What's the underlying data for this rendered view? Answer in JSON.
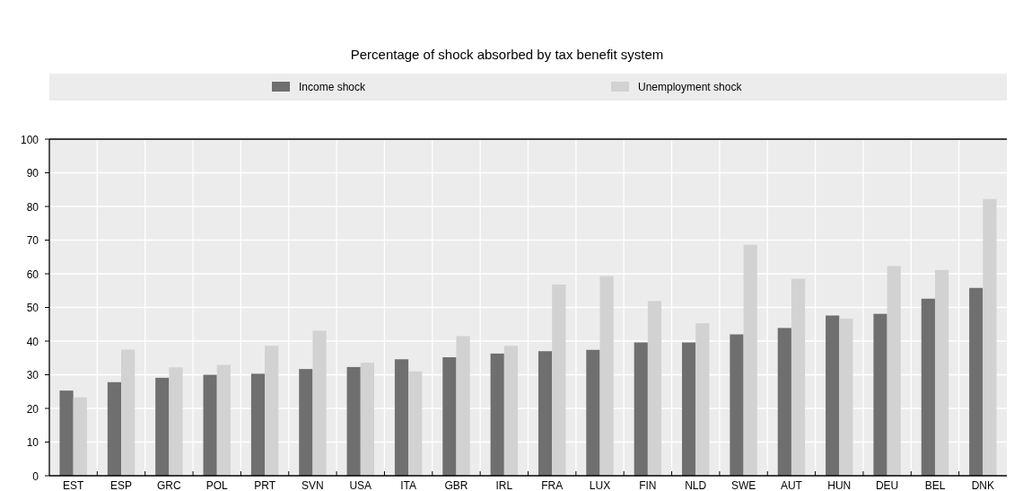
{
  "chart_data": {
    "type": "bar",
    "title": "Percentage of shock absorbed by tax benefit system",
    "categories": [
      "EST",
      "ESP",
      "GRC",
      "POL",
      "PRT",
      "SVN",
      "USA",
      "ITA",
      "GBR",
      "IRL",
      "FRA",
      "LUX",
      "FIN",
      "NLD",
      "SWE",
      "AUT",
      "HUN",
      "DEU",
      "BEL",
      "DNK"
    ],
    "series": [
      {
        "name": "Income shock",
        "color": "#6f6f6f",
        "values": [
          25.3,
          27.8,
          29.1,
          30.0,
          30.3,
          31.7,
          32.3,
          34.6,
          35.2,
          36.3,
          37.0,
          37.4,
          39.6,
          39.6,
          42.0,
          43.9,
          47.6,
          48.1,
          52.6,
          55.8
        ]
      },
      {
        "name": "Unemployment shock",
        "color": "#d2d2d2",
        "values": [
          23.3,
          37.5,
          32.2,
          32.9,
          38.6,
          43.1,
          33.6,
          31.0,
          41.5,
          38.6,
          56.8,
          59.3,
          51.9,
          45.3,
          68.6,
          58.5,
          46.7,
          62.3,
          61.1,
          82.2
        ]
      }
    ],
    "ylim": [
      0,
      100
    ],
    "yticks": [
      0,
      10,
      20,
      30,
      40,
      50,
      60,
      70,
      80,
      90,
      100
    ],
    "grid": true,
    "legend": "top"
  }
}
